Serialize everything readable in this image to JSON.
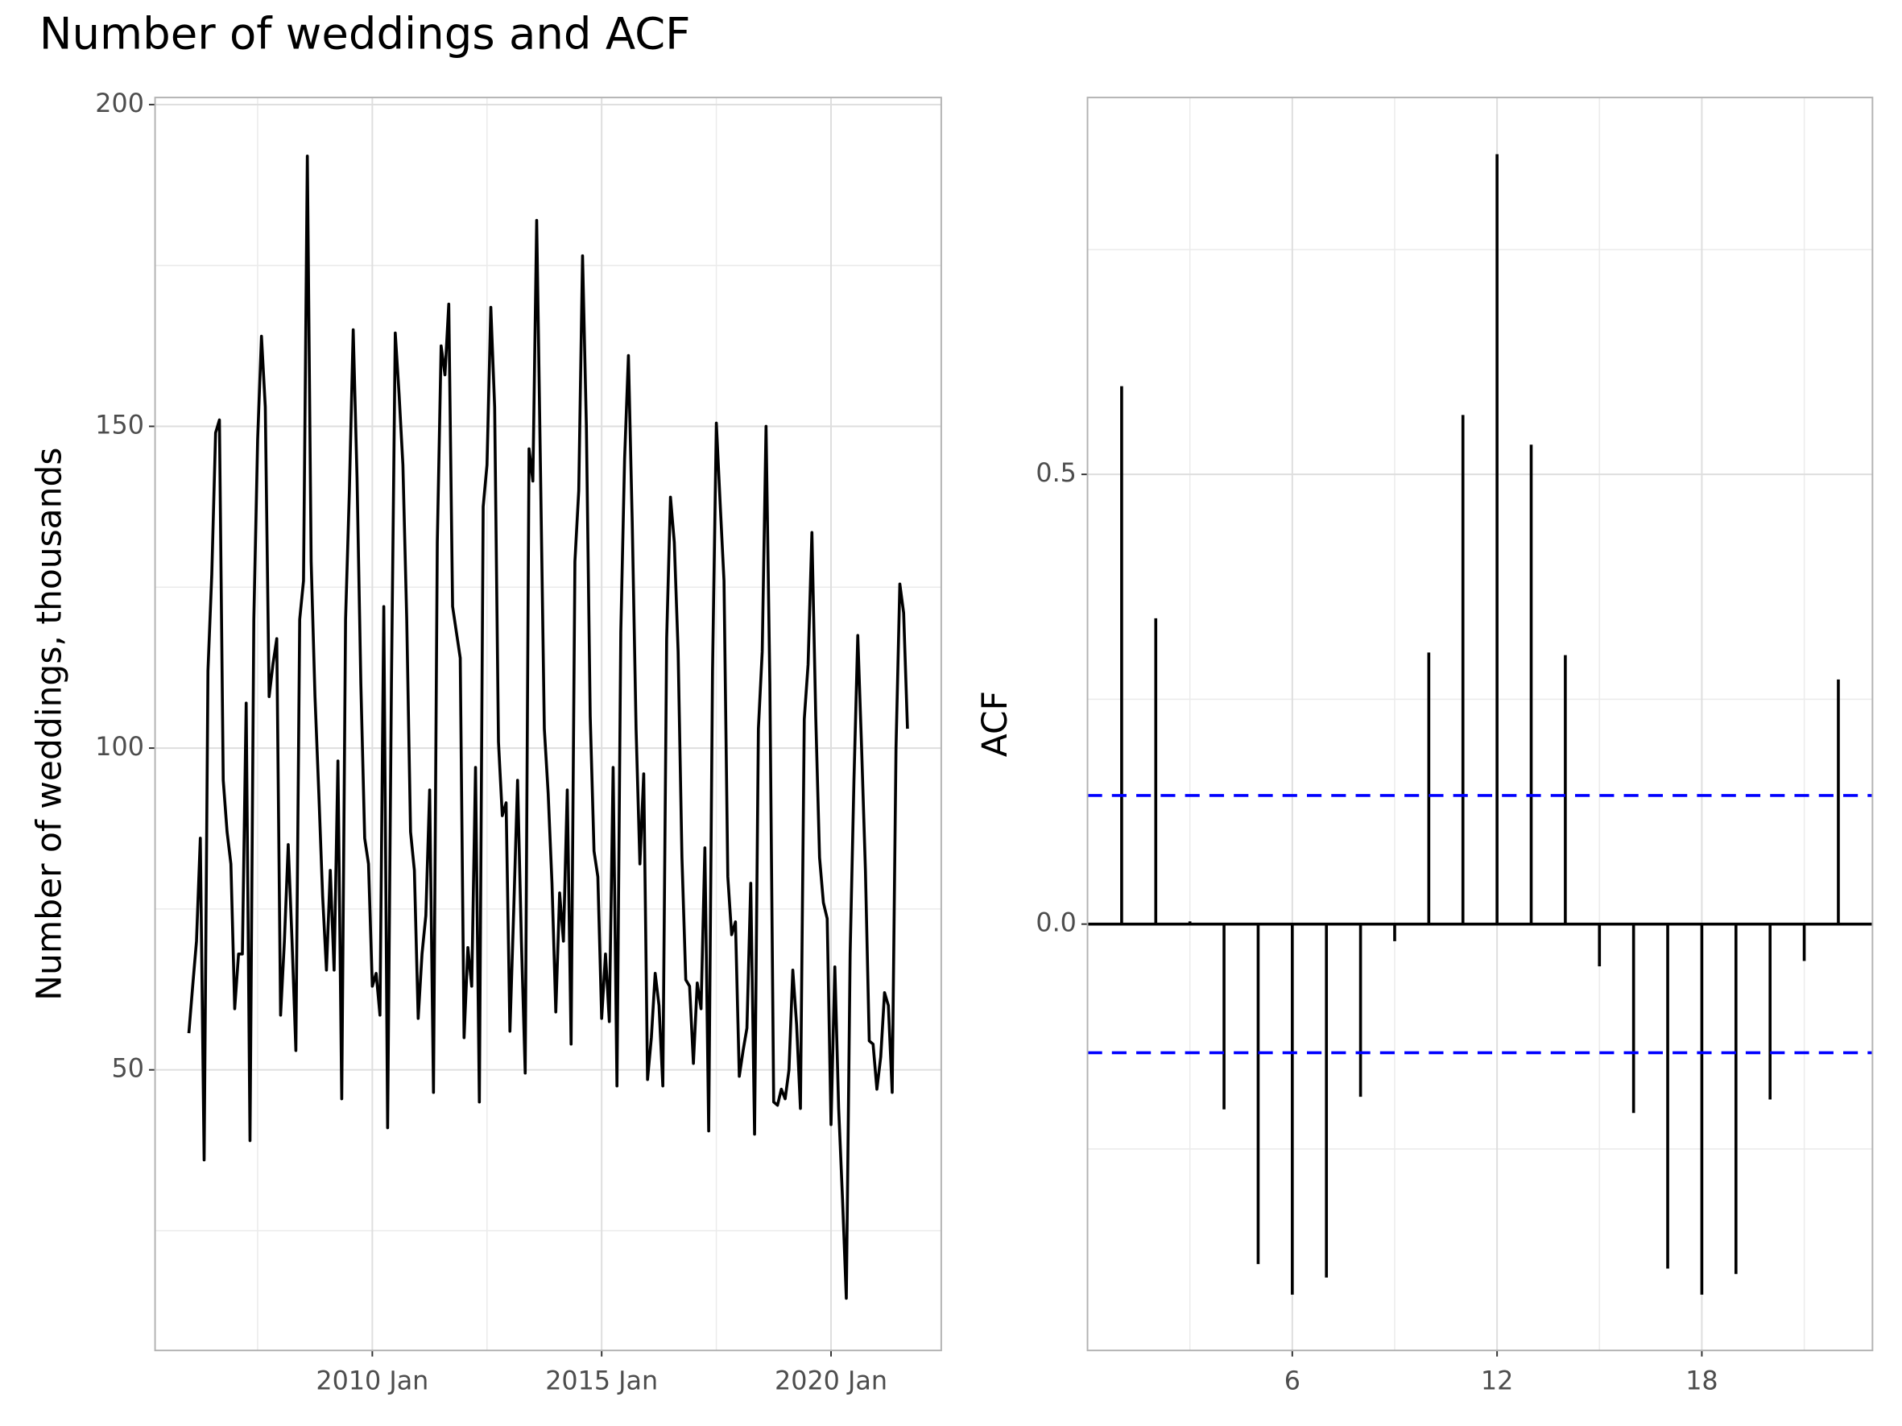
{
  "title": "Number of weddings and ACF",
  "chart_data": [
    {
      "type": "line",
      "ylabel": "Number of weddings, thousands",
      "color": "#000000",
      "x": [
        "2006 Jan",
        "2006 Feb",
        "2006 Mar",
        "2006 Apr",
        "2006 May",
        "2006 Jun",
        "2006 Jul",
        "2006 Aug",
        "2006 Sep",
        "2006 Oct",
        "2006 Nov",
        "2006 Dec",
        "2007 Jan",
        "2007 Feb",
        "2007 Mar",
        "2007 Apr",
        "2007 May",
        "2007 Jun",
        "2007 Jul",
        "2007 Aug",
        "2007 Sep",
        "2007 Oct",
        "2007 Nov",
        "2007 Dec",
        "2008 Jan",
        "2008 Feb",
        "2008 Mar",
        "2008 Apr",
        "2008 May",
        "2008 Jun",
        "2008 Jul",
        "2008 Aug",
        "2008 Sep",
        "2008 Oct",
        "2008 Nov",
        "2008 Dec",
        "2009 Jan",
        "2009 Feb",
        "2009 Mar",
        "2009 Apr",
        "2009 May",
        "2009 Jun",
        "2009 Jul",
        "2009 Aug",
        "2009 Sep",
        "2009 Oct",
        "2009 Nov",
        "2009 Dec",
        "2010 Jan",
        "2010 Feb",
        "2010 Mar",
        "2010 Apr",
        "2010 May",
        "2010 Jun",
        "2010 Jul",
        "2010 Aug",
        "2010 Sep",
        "2010 Oct",
        "2010 Nov",
        "2010 Dec",
        "2011 Jan",
        "2011 Feb",
        "2011 Mar",
        "2011 Apr",
        "2011 May",
        "2011 Jun",
        "2011 Jul",
        "2011 Aug",
        "2011 Sep",
        "2011 Oct",
        "2011 Nov",
        "2011 Dec",
        "2012 Jan",
        "2012 Feb",
        "2012 Mar",
        "2012 Apr",
        "2012 May",
        "2012 Jun",
        "2012 Jul",
        "2012 Aug",
        "2012 Sep",
        "2012 Oct",
        "2012 Nov",
        "2012 Dec",
        "2013 Jan",
        "2013 Feb",
        "2013 Mar",
        "2013 Apr",
        "2013 May",
        "2013 Jun",
        "2013 Jul",
        "2013 Aug",
        "2013 Sep",
        "2013 Oct",
        "2013 Nov",
        "2013 Dec",
        "2014 Jan",
        "2014 Feb",
        "2014 Mar",
        "2014 Apr",
        "2014 May",
        "2014 Jun",
        "2014 Jul",
        "2014 Aug",
        "2014 Sep",
        "2014 Oct",
        "2014 Nov",
        "2014 Dec",
        "2015 Jan",
        "2015 Feb",
        "2015 Mar",
        "2015 Apr",
        "2015 May",
        "2015 Jun",
        "2015 Jul",
        "2015 Aug",
        "2015 Sep",
        "2015 Oct",
        "2015 Nov",
        "2015 Dec",
        "2016 Jan",
        "2016 Feb",
        "2016 Mar",
        "2016 Apr",
        "2016 May",
        "2016 Jun",
        "2016 Jul",
        "2016 Aug",
        "2016 Sep",
        "2016 Oct",
        "2016 Nov",
        "2016 Dec",
        "2017 Jan",
        "2017 Feb",
        "2017 Mar",
        "2017 Apr",
        "2017 May",
        "2017 Jun",
        "2017 Jul",
        "2017 Aug",
        "2017 Sep",
        "2017 Oct",
        "2017 Nov",
        "2017 Dec",
        "2018 Jan",
        "2018 Feb",
        "2018 Mar",
        "2018 Apr",
        "2018 May",
        "2018 Jun",
        "2018 Jul",
        "2018 Aug",
        "2018 Sep",
        "2018 Oct",
        "2018 Nov",
        "2018 Dec",
        "2019 Jan",
        "2019 Feb",
        "2019 Mar",
        "2019 Apr",
        "2019 May",
        "2019 Jun",
        "2019 Jul",
        "2019 Aug",
        "2019 Sep",
        "2019 Oct",
        "2019 Nov",
        "2019 Dec",
        "2020 Jan",
        "2020 Feb",
        "2020 Mar",
        "2020 Apr",
        "2020 May",
        "2020 Jun",
        "2020 Jul",
        "2020 Aug",
        "2020 Sep",
        "2020 Oct",
        "2020 Nov",
        "2020 Dec",
        "2021 Jan",
        "2021 Feb",
        "2021 Mar",
        "2021 Apr",
        "2021 May",
        "2021 Jun",
        "2021 Jul",
        "2021 Aug",
        "2021 Sep"
      ],
      "values": [
        55.7,
        63,
        70,
        86,
        36,
        112,
        127,
        149,
        151,
        95,
        87,
        82,
        59.5,
        68,
        68,
        107,
        39,
        120,
        148,
        164,
        153,
        108,
        113,
        117,
        58.5,
        70,
        85,
        70,
        53,
        120,
        126,
        192,
        129,
        108,
        93,
        77,
        65.5,
        81,
        65.5,
        98,
        45.5,
        120,
        140,
        165,
        142,
        110,
        86,
        82,
        63,
        65,
        58.5,
        122,
        41,
        110,
        164.5,
        155,
        144,
        120,
        87,
        81,
        58,
        68,
        74,
        93.5,
        46.5,
        132,
        162.5,
        158,
        169,
        122,
        118,
        114,
        55,
        69,
        63,
        97,
        45,
        137.5,
        144,
        168.5,
        153,
        101,
        89.5,
        91.5,
        56,
        75,
        95,
        70,
        49.5,
        146.5,
        141.5,
        182,
        143,
        103,
        93,
        79,
        59,
        77.5,
        70,
        93.5,
        54,
        129,
        140,
        176.5,
        150,
        105,
        84,
        80,
        58,
        68,
        57.5,
        97,
        47.5,
        118,
        145,
        161,
        135,
        103,
        82,
        96,
        48.5,
        55,
        65,
        60,
        47.5,
        117,
        139,
        132,
        115,
        83,
        64,
        63,
        51,
        63.5,
        59.5,
        84.5,
        40.5,
        112,
        150.5,
        138,
        126,
        80,
        71,
        73,
        49,
        53,
        56.5,
        79,
        40,
        103,
        115,
        150,
        110,
        45,
        44.5,
        47,
        45.5,
        50,
        65.5,
        57,
        44,
        104.5,
        113,
        133.5,
        105,
        83,
        76,
        73.5,
        41.5,
        66,
        44,
        30,
        14.5,
        68,
        95,
        117.5,
        100,
        81,
        54.5,
        54,
        47,
        52,
        62,
        60,
        46.5,
        100,
        125.5,
        121,
        103
      ],
      "xticks": [
        "2010 Jan",
        "2015 Jan",
        "2020 Jan"
      ],
      "ylim": [
        6.4,
        201.1
      ],
      "yticks": [
        50,
        100,
        150,
        200
      ],
      "grid": true
    },
    {
      "type": "acf",
      "ylabel": "ACF",
      "color": "#000000",
      "ci_color": "#0000ff",
      "x": [
        1,
        2,
        3,
        4,
        5,
        6,
        7,
        8,
        9,
        10,
        11,
        12,
        13,
        14,
        15,
        16,
        17,
        18,
        19,
        20,
        21,
        22
      ],
      "values": [
        0.598,
        0.34,
        0.003,
        -0.206,
        -0.378,
        -0.412,
        -0.393,
        -0.192,
        -0.019,
        0.302,
        0.566,
        0.856,
        0.533,
        0.299,
        -0.047,
        -0.21,
        -0.383,
        -0.412,
        -0.389,
        -0.195,
        -0.041,
        0.272
      ],
      "ci": [
        0.143,
        -0.143
      ],
      "xlim": [
        0,
        23
      ],
      "xticks": [
        6,
        12,
        18
      ],
      "ylim": [
        -0.474,
        0.919
      ],
      "yticks": [
        {
          "value": 0,
          "label": "0.0"
        },
        {
          "value": 0.5,
          "label": "0.5"
        }
      ],
      "grid": true
    }
  ]
}
